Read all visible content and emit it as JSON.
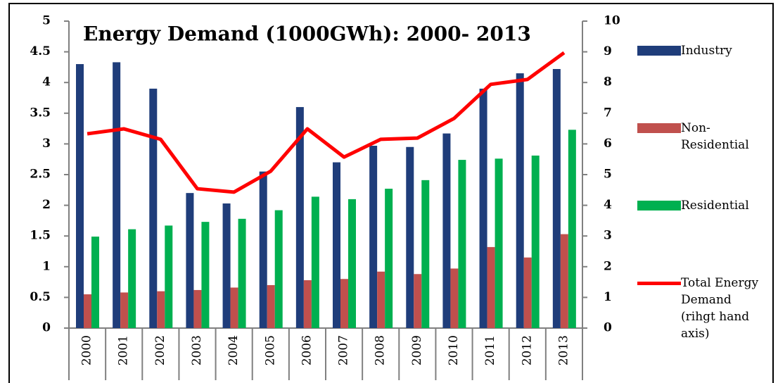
{
  "chart_data": {
    "type": "bar",
    "title": "Energy Demand (1000GWh): 2000- 2013",
    "categories": [
      "2000",
      "2001",
      "2002",
      "2003",
      "2004",
      "2005",
      "2006",
      "2007",
      "2008",
      "2009",
      "2010",
      "2011",
      "2012",
      "2013"
    ],
    "series": [
      {
        "name": "Industry",
        "color": "#1f3d7a",
        "values": [
          4.3,
          4.33,
          3.9,
          2.2,
          2.03,
          2.55,
          3.6,
          2.7,
          2.97,
          2.95,
          3.17,
          3.9,
          4.15,
          4.22
        ]
      },
      {
        "name": "Non-Residential",
        "color": "#c0504d",
        "values": [
          0.55,
          0.58,
          0.6,
          0.62,
          0.66,
          0.7,
          0.78,
          0.8,
          0.92,
          0.88,
          0.97,
          1.32,
          1.15,
          1.53
        ]
      },
      {
        "name": "Residential",
        "color": "#00b050",
        "values": [
          1.49,
          1.61,
          1.67,
          1.73,
          1.78,
          1.92,
          2.14,
          2.1,
          2.27,
          2.41,
          2.74,
          2.76,
          2.81,
          3.23
        ]
      },
      {
        "name": "Total Energy Demand (rihgt hand axis)",
        "color": "#ff0000",
        "type": "line",
        "axis": "y2",
        "values": [
          6.33,
          6.49,
          6.15,
          4.54,
          4.43,
          5.11,
          6.49,
          5.57,
          6.15,
          6.19,
          6.83,
          7.94,
          8.1,
          8.97
        ]
      }
    ],
    "ylim": [
      0,
      5
    ],
    "yticks": [
      0,
      0.5,
      1,
      1.5,
      2,
      2.5,
      3,
      3.5,
      4,
      4.5,
      5
    ],
    "y2lim": [
      0,
      10
    ],
    "y2ticks": [
      0,
      1,
      2,
      3,
      4,
      5,
      6,
      7,
      8,
      9,
      10
    ],
    "grid": false,
    "legend": "right"
  }
}
